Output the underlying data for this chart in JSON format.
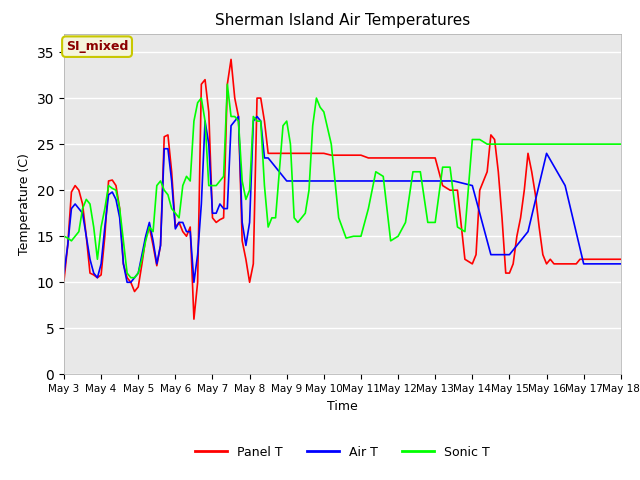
{
  "title": "Sherman Island Air Temperatures",
  "xlabel": "Time",
  "ylabel": "Temperature (C)",
  "fig_bg_color": "#ffffff",
  "plot_bg_color": "#e8e8e8",
  "ylim": [
    0,
    37
  ],
  "yticks": [
    0,
    5,
    10,
    15,
    20,
    25,
    30,
    35
  ],
  "xtick_labels": [
    "May 3",
    "May 4",
    "May 5",
    "May 6",
    "May 7",
    "May 8",
    "May 9",
    "May 10",
    "May 11",
    "May 12",
    "May 13",
    "May 14",
    "May 15",
    "May 16",
    "May 17",
    "May 18"
  ],
  "annotation_text": "SI_mixed",
  "annotation_color": "#8b0000",
  "annotation_bg": "#f5f5dc",
  "annotation_edge": "#c8c800",
  "panel_t_x": [
    3.0,
    3.1,
    3.2,
    3.3,
    3.4,
    3.5,
    3.6,
    3.7,
    3.8,
    3.9,
    4.0,
    4.1,
    4.2,
    4.3,
    4.4,
    4.5,
    4.6,
    4.7,
    4.8,
    4.9,
    5.0,
    5.1,
    5.2,
    5.3,
    5.4,
    5.5,
    5.6,
    5.7,
    5.8,
    5.9,
    6.0,
    6.1,
    6.2,
    6.3,
    6.4,
    6.5,
    6.6,
    6.7,
    6.8,
    6.9,
    7.0,
    7.1,
    7.2,
    7.3,
    7.4,
    7.5,
    7.6,
    7.7,
    7.8,
    7.9,
    8.0,
    8.1,
    8.2,
    8.3,
    8.4,
    8.5,
    8.6,
    8.7,
    8.8,
    8.9,
    9.0,
    9.1,
    9.2,
    9.3,
    9.4,
    9.5,
    9.6,
    9.7,
    9.8,
    9.9,
    10.0,
    10.2,
    10.4,
    10.6,
    10.8,
    11.0,
    11.2,
    11.4,
    11.6,
    11.8,
    12.0,
    12.2,
    12.4,
    12.6,
    12.8,
    13.0,
    13.2,
    13.4,
    13.6,
    13.8,
    14.0,
    14.1,
    14.2,
    14.3,
    14.4,
    14.5,
    14.6,
    14.7,
    14.8,
    14.9,
    15.0,
    15.1,
    15.2,
    15.3,
    15.4,
    15.5,
    15.6,
    15.7,
    15.8,
    15.9,
    16.0,
    16.1,
    16.2,
    16.3,
    16.4,
    16.5,
    16.6,
    16.7,
    16.8,
    16.9,
    17.0,
    17.1,
    17.2,
    17.3,
    17.4,
    17.5,
    17.6,
    17.7,
    17.8,
    17.9,
    18.0
  ],
  "panel_t_y": [
    10.2,
    14.0,
    19.8,
    20.5,
    20.0,
    18.5,
    15.0,
    11.0,
    10.8,
    10.5,
    10.8,
    15.0,
    21.0,
    21.1,
    20.5,
    18.0,
    12.0,
    10.5,
    10.0,
    9.0,
    9.5,
    12.0,
    14.8,
    16.0,
    14.0,
    11.8,
    14.0,
    25.8,
    26.0,
    22.0,
    16.0,
    16.5,
    15.5,
    15.0,
    16.0,
    6.0,
    10.0,
    31.5,
    32.0,
    28.5,
    17.0,
    16.5,
    16.8,
    17.0,
    31.5,
    34.2,
    30.0,
    28.0,
    14.5,
    12.5,
    10.0,
    12.0,
    30.0,
    30.0,
    27.5,
    24.0,
    24.0,
    24.0,
    24.0,
    24.0,
    24.0,
    24.0,
    24.0,
    24.0,
    24.0,
    24.0,
    24.0,
    24.0,
    24.0,
    24.0,
    24.0,
    23.8,
    23.8,
    23.8,
    23.8,
    23.8,
    23.5,
    23.5,
    23.5,
    23.5,
    23.5,
    23.5,
    23.5,
    23.5,
    23.5,
    23.5,
    20.5,
    20.0,
    20.0,
    12.5,
    12.0,
    13.0,
    20.0,
    21.0,
    22.0,
    26.0,
    25.5,
    22.0,
    17.0,
    11.0,
    11.0,
    12.0,
    15.0,
    17.0,
    20.0,
    24.0,
    22.0,
    19.5,
    16.0,
    13.0,
    12.0,
    12.5,
    12.0,
    12.0,
    12.0,
    12.0,
    12.0,
    12.0,
    12.0,
    12.5,
    12.5,
    12.5,
    12.5,
    12.5,
    12.5,
    12.5,
    12.5,
    12.5,
    12.5,
    12.5,
    12.5
  ],
  "air_t_x": [
    3.0,
    3.1,
    3.2,
    3.3,
    3.4,
    3.5,
    3.6,
    3.7,
    3.8,
    3.9,
    4.0,
    4.1,
    4.2,
    4.3,
    4.4,
    4.5,
    4.6,
    4.7,
    4.8,
    4.9,
    5.0,
    5.1,
    5.2,
    5.3,
    5.4,
    5.5,
    5.6,
    5.7,
    5.8,
    5.9,
    6.0,
    6.1,
    6.2,
    6.3,
    6.4,
    6.5,
    6.6,
    6.7,
    6.8,
    6.9,
    7.0,
    7.1,
    7.2,
    7.3,
    7.4,
    7.5,
    7.6,
    7.7,
    7.8,
    7.9,
    8.0,
    8.1,
    8.2,
    8.3,
    8.4,
    8.5,
    8.6,
    8.7,
    8.8,
    8.9,
    9.0,
    9.2,
    9.4,
    9.6,
    9.8,
    10.0,
    10.5,
    11.0,
    11.5,
    12.0,
    12.5,
    13.0,
    13.5,
    14.0,
    14.5,
    15.0,
    15.5,
    16.0,
    16.5,
    17.0,
    17.5,
    18.0
  ],
  "air_t_y": [
    11.0,
    14.0,
    18.0,
    18.5,
    18.0,
    17.5,
    15.0,
    12.5,
    11.0,
    10.5,
    12.0,
    16.0,
    19.5,
    19.8,
    19.0,
    17.0,
    12.0,
    10.0,
    10.0,
    10.5,
    11.0,
    13.0,
    15.0,
    16.5,
    14.5,
    12.0,
    14.0,
    24.5,
    24.5,
    21.0,
    15.8,
    16.5,
    16.5,
    15.5,
    15.5,
    10.0,
    13.0,
    18.5,
    27.5,
    25.0,
    17.5,
    17.5,
    18.5,
    18.0,
    18.0,
    27.0,
    27.5,
    28.0,
    16.5,
    14.0,
    16.5,
    27.5,
    28.0,
    27.5,
    23.5,
    23.5,
    23.0,
    22.5,
    22.0,
    21.5,
    21.0,
    21.0,
    21.0,
    21.0,
    21.0,
    21.0,
    21.0,
    21.0,
    21.0,
    21.0,
    21.0,
    21.0,
    21.0,
    20.5,
    13.0,
    13.0,
    15.5,
    24.0,
    20.5,
    12.0,
    12.0,
    12.0
  ],
  "sonic_t_x": [
    3.0,
    3.1,
    3.2,
    3.3,
    3.4,
    3.5,
    3.6,
    3.7,
    3.8,
    3.9,
    4.0,
    4.1,
    4.2,
    4.3,
    4.4,
    4.5,
    4.6,
    4.7,
    4.8,
    4.9,
    5.0,
    5.1,
    5.2,
    5.3,
    5.4,
    5.5,
    5.6,
    5.7,
    5.8,
    5.9,
    6.0,
    6.1,
    6.2,
    6.3,
    6.4,
    6.5,
    6.6,
    6.7,
    6.8,
    6.9,
    7.0,
    7.1,
    7.2,
    7.3,
    7.4,
    7.5,
    7.6,
    7.7,
    7.8,
    7.9,
    8.0,
    8.1,
    8.2,
    8.3,
    8.4,
    8.5,
    8.6,
    8.7,
    8.8,
    8.9,
    9.0,
    9.1,
    9.2,
    9.3,
    9.4,
    9.5,
    9.6,
    9.7,
    9.8,
    9.9,
    10.0,
    10.2,
    10.4,
    10.6,
    10.8,
    11.0,
    11.2,
    11.4,
    11.6,
    11.8,
    12.0,
    12.2,
    12.4,
    12.6,
    12.8,
    13.0,
    13.2,
    13.4,
    13.6,
    13.8,
    14.0,
    14.2,
    14.4,
    14.6,
    14.8,
    15.0,
    15.2,
    15.4,
    15.6,
    15.8,
    16.0,
    16.2,
    16.4,
    16.6,
    16.8,
    17.0,
    17.2,
    17.4,
    17.6,
    17.8,
    18.0
  ],
  "sonic_t_y": [
    15.0,
    14.8,
    14.5,
    15.0,
    15.5,
    18.0,
    19.0,
    18.5,
    16.0,
    12.5,
    16.0,
    18.0,
    20.5,
    20.2,
    20.0,
    18.0,
    14.5,
    11.0,
    10.5,
    10.5,
    11.0,
    12.5,
    14.5,
    16.0,
    15.5,
    20.5,
    21.0,
    20.0,
    19.5,
    18.0,
    17.5,
    17.0,
    20.5,
    21.5,
    21.0,
    27.5,
    29.5,
    30.0,
    27.5,
    20.5,
    20.5,
    20.5,
    21.0,
    21.5,
    31.5,
    28.0,
    28.0,
    27.5,
    21.0,
    19.0,
    20.0,
    28.0,
    27.5,
    27.5,
    20.5,
    16.0,
    17.0,
    17.0,
    22.0,
    27.0,
    27.5,
    25.0,
    17.0,
    16.5,
    17.0,
    17.5,
    20.0,
    27.0,
    30.0,
    29.0,
    28.5,
    25.0,
    17.0,
    14.8,
    15.0,
    15.0,
    18.0,
    22.0,
    21.5,
    14.5,
    15.0,
    16.5,
    22.0,
    22.0,
    16.5,
    16.5,
    22.5,
    22.5,
    16.0,
    15.5,
    25.5,
    25.5,
    25.0,
    25.0,
    25.0,
    25.0,
    25.0,
    25.0,
    25.0,
    25.0,
    25.0,
    25.0,
    25.0,
    25.0,
    25.0,
    25.0,
    25.0,
    25.0,
    25.0,
    25.0,
    25.0
  ]
}
